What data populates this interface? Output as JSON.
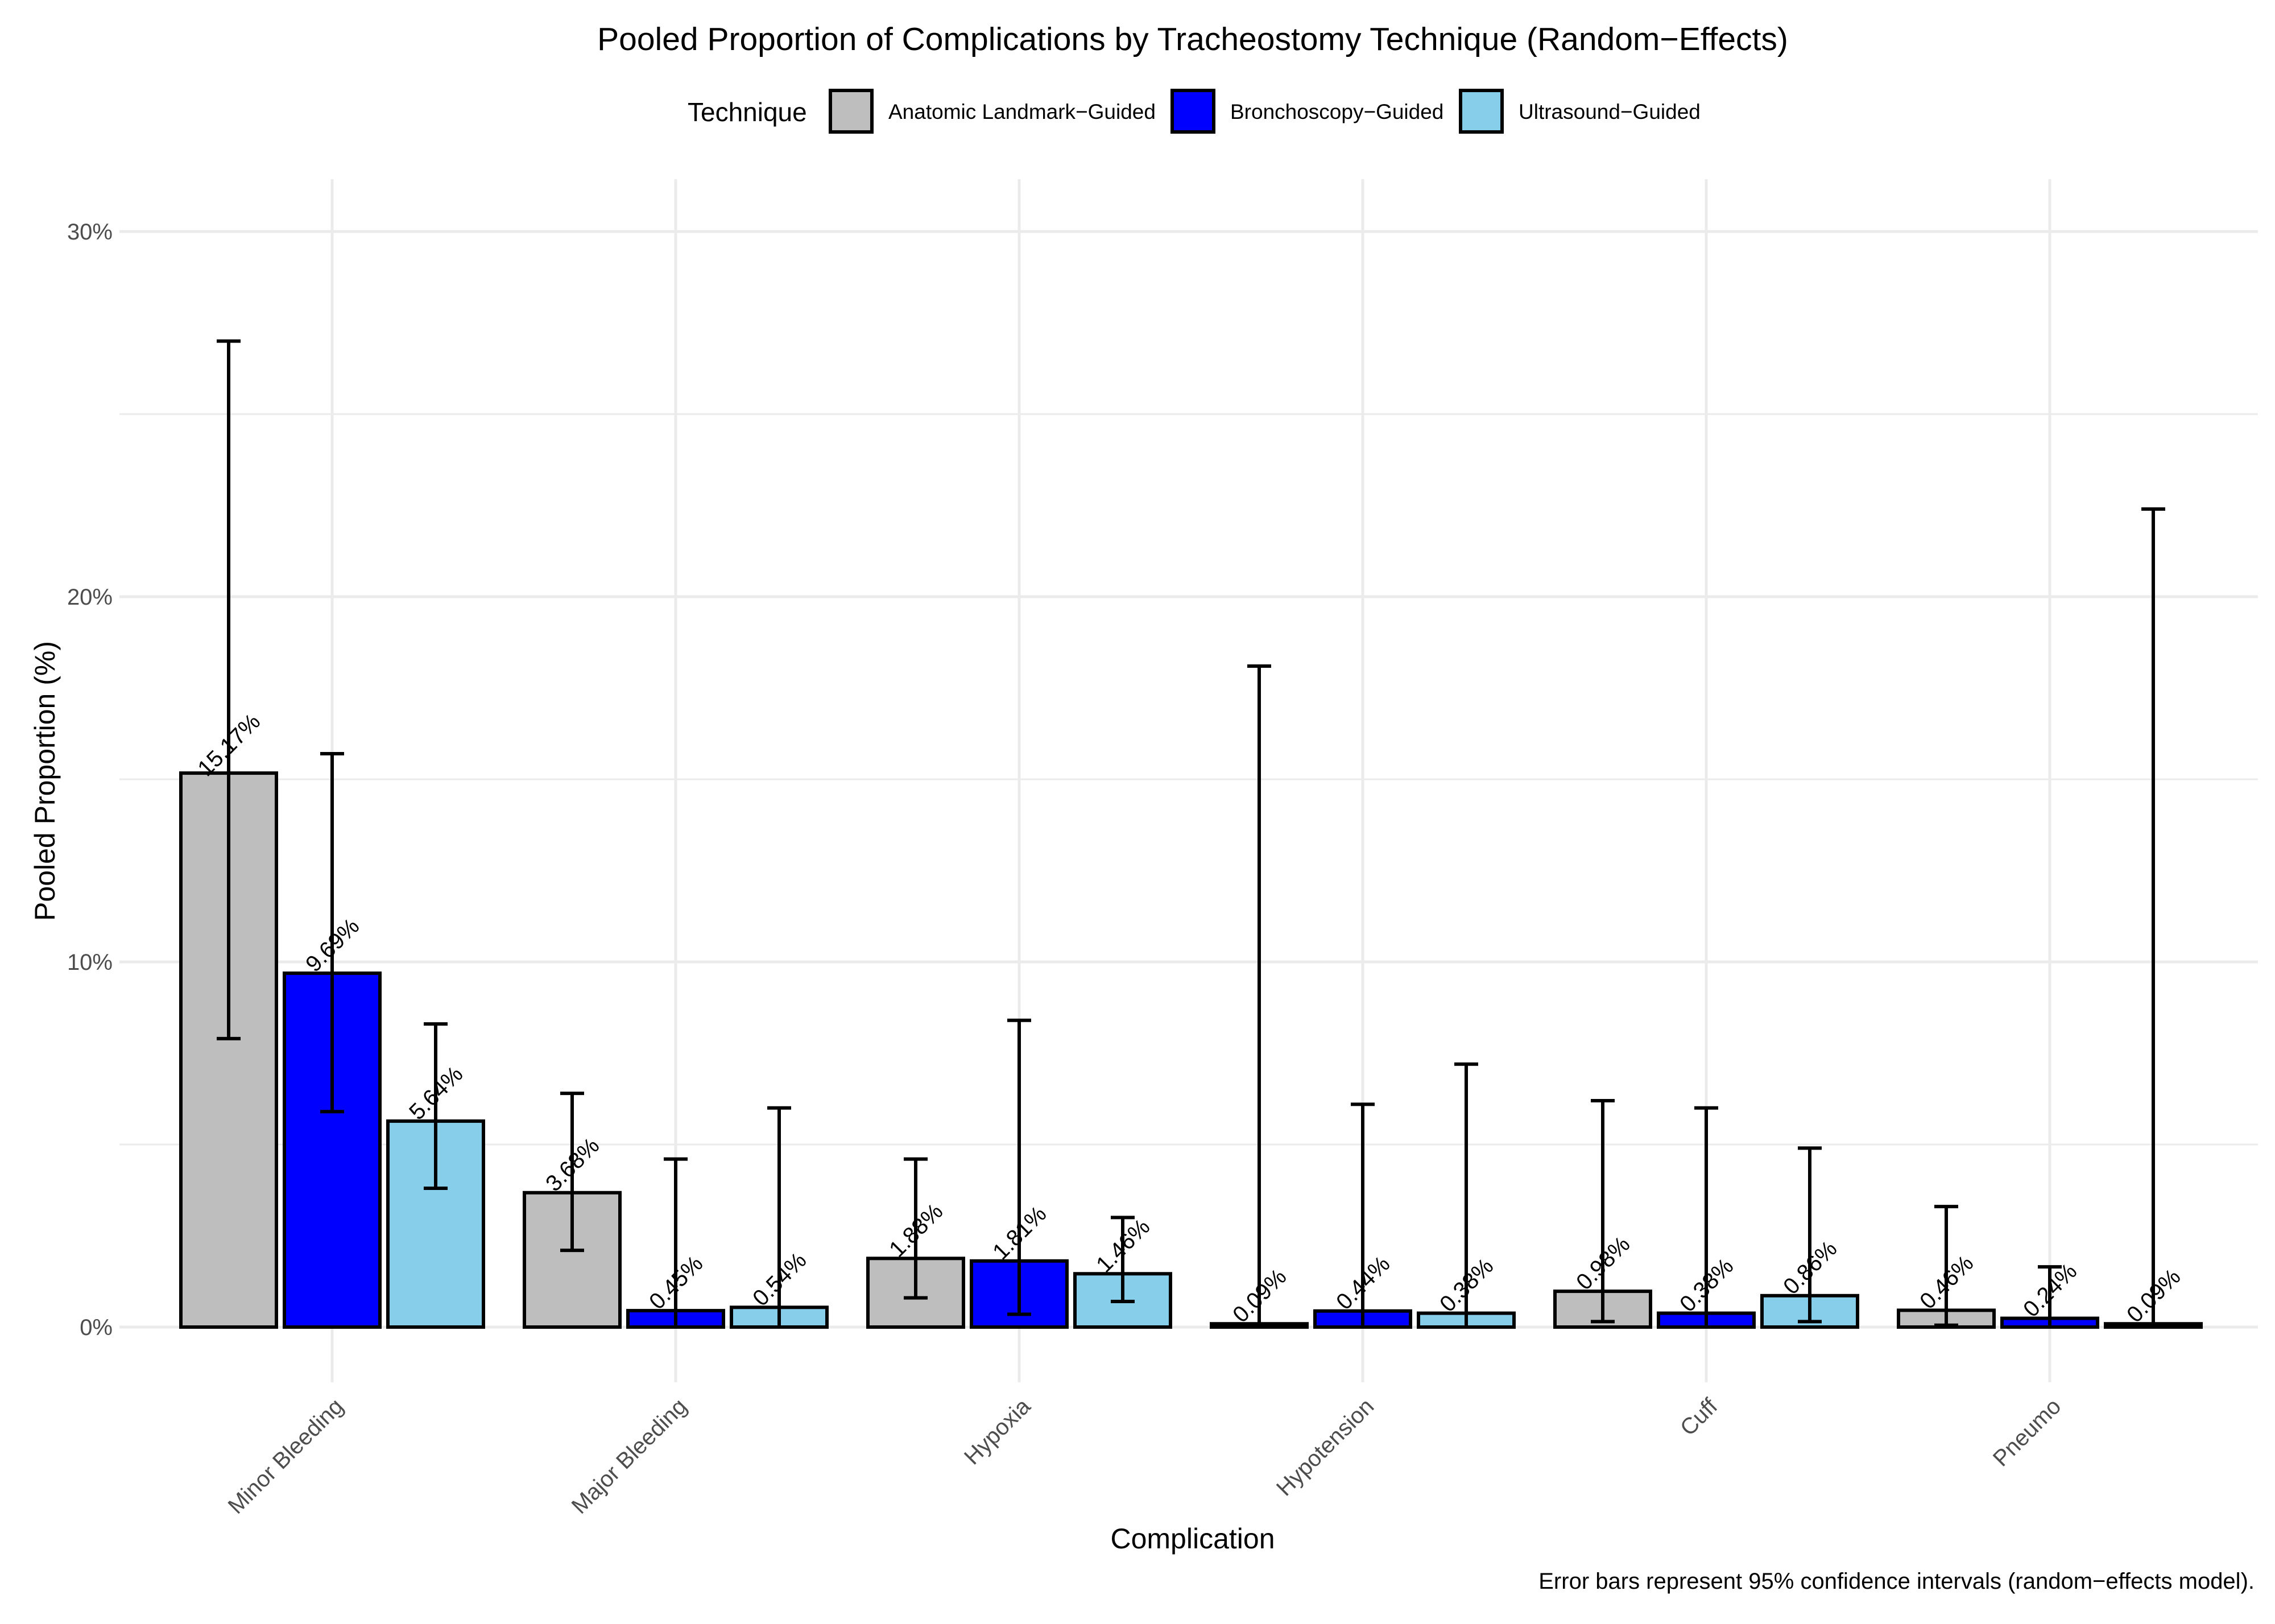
{
  "chart_data": {
    "type": "bar",
    "title": "Pooled Proportion of Complications by Tracheostomy Technique (Random−Effects)",
    "xlabel": "Complication",
    "ylabel": "Pooled Proportion (%)",
    "caption": "Error bars represent 95% confidence intervals (random−effects model).",
    "legend_title": "Technique",
    "legend_position": "top",
    "ylim": [
      0,
      30
    ],
    "y_ticks": [
      {
        "value": 0,
        "label": "0%"
      },
      {
        "value": 10,
        "label": "10%"
      },
      {
        "value": 20,
        "label": "20%"
      },
      {
        "value": 30,
        "label": "30%"
      }
    ],
    "grid": true,
    "categories": [
      "Minor Bleeding",
      "Major Bleeding",
      "Hypoxia",
      "Hypotension",
      "Cuff",
      "Pneumo"
    ],
    "series": [
      {
        "name": "Anatomic Landmark−Guided",
        "color": "#bebebe",
        "values": [
          15.17,
          3.68,
          1.88,
          0.09,
          0.98,
          0.46
        ],
        "labels": [
          "15.17%",
          "3.68%",
          "1.88%",
          "0.09%",
          "0.98%",
          "0.46%"
        ],
        "ci_lower": [
          7.9,
          2.1,
          0.8,
          0.0,
          0.15,
          0.05
        ],
        "ci_upper": [
          27.0,
          6.4,
          4.6,
          18.1,
          6.2,
          3.3
        ]
      },
      {
        "name": "Bronchoscopy−Guided",
        "color": "#0000ff",
        "values": [
          9.69,
          0.45,
          1.81,
          0.44,
          0.38,
          0.24
        ],
        "labels": [
          "9.69%",
          "0.45%",
          "1.81%",
          "0.44%",
          "0.38%",
          "0.24%"
        ],
        "ci_lower": [
          5.9,
          0.0,
          0.35,
          0.0,
          0.0,
          0.0
        ],
        "ci_upper": [
          15.7,
          4.6,
          8.4,
          6.1,
          6.0,
          1.65
        ]
      },
      {
        "name": "Ultrasound−Guided",
        "color": "#87ceeb",
        "values": [
          5.64,
          0.54,
          1.46,
          0.38,
          0.86,
          0.09
        ],
        "labels": [
          "5.64%",
          "0.54%",
          "1.46%",
          "0.38%",
          "0.86%",
          "0.09%"
        ],
        "ci_lower": [
          3.8,
          0.0,
          0.7,
          0.0,
          0.15,
          0.0
        ],
        "ci_upper": [
          8.3,
          6.0,
          3.0,
          7.2,
          4.9,
          22.4
        ]
      }
    ]
  }
}
